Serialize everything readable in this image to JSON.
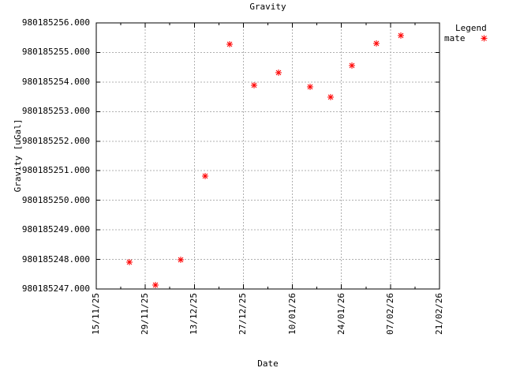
{
  "title": "Gravity",
  "axes": {
    "x_label": "Date",
    "y_label": "Gravity [uGal]"
  },
  "legend": {
    "title": "Legend",
    "entries": [
      {
        "label": "mate",
        "marker": "asterisk",
        "color": "#ff0000"
      }
    ]
  },
  "colors": {
    "marker": "#ff0000",
    "grid": "#b0b0b0",
    "axis": "#000000",
    "background": "#ffffff",
    "text": "#000000"
  },
  "chart_data": {
    "type": "scatter",
    "title": "Gravity",
    "xlabel": "Date",
    "ylabel": "Gravity [uGal]",
    "grid": true,
    "legend_position": "outside-top-right",
    "x_axis": {
      "type": "date",
      "format": "dd/mm/yy",
      "range_days": [
        0,
        98
      ],
      "tick_days": [
        0,
        14,
        28,
        42,
        56,
        70,
        84,
        98
      ],
      "tick_labels": [
        "15/11/25",
        "29/11/25",
        "13/12/25",
        "27/12/25",
        "10/01/26",
        "24/01/26",
        "07/02/26",
        "21/02/26"
      ],
      "minor_tick_days": [
        7,
        21,
        35,
        49,
        63,
        77,
        91
      ]
    },
    "y_axis": {
      "range": [
        980185247,
        980185256
      ],
      "tick_values": [
        980185247,
        980185248,
        980185249,
        980185250,
        980185251,
        980185252,
        980185253,
        980185254,
        980185255,
        980185256
      ],
      "tick_labels": [
        "980185247.000",
        "980185248.000",
        "980185249.000",
        "980185250.000",
        "980185251.000",
        "980185252.000",
        "980185253.000",
        "980185254.000",
        "980185255.000",
        "980185256.000"
      ]
    },
    "series": [
      {
        "name": "mate",
        "marker": "asterisk",
        "color": "#ff0000",
        "points": [
          {
            "date": "24/11/25",
            "day": 9.5,
            "value": 980185247.9
          },
          {
            "date": "02/12/25",
            "day": 17,
            "value": 980185247.13
          },
          {
            "date": "09/12/25",
            "day": 24,
            "value": 980185248.0
          },
          {
            "date": "16/12/25",
            "day": 31,
            "value": 980185250.82
          },
          {
            "date": "23/12/25",
            "day": 38,
            "value": 980185255.27
          },
          {
            "date": "30/12/25",
            "day": 45,
            "value": 980185253.88
          },
          {
            "date": "06/01/26",
            "day": 52,
            "value": 980185254.33
          },
          {
            "date": "15/01/26",
            "day": 61,
            "value": 980185253.84
          },
          {
            "date": "21/01/26",
            "day": 67,
            "value": 980185253.48
          },
          {
            "date": "27/01/26",
            "day": 73,
            "value": 980185254.57
          },
          {
            "date": "03/02/26",
            "day": 80,
            "value": 980185255.3
          },
          {
            "date": "10/02/26",
            "day": 87,
            "value": 980185255.56
          }
        ]
      }
    ]
  }
}
